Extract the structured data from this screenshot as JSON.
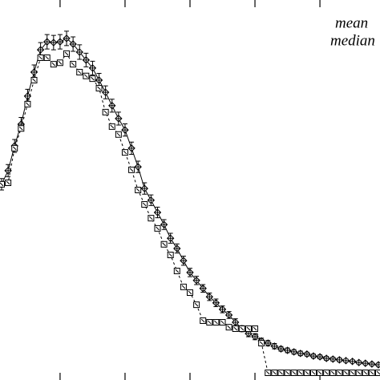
{
  "chart_data": {
    "type": "line",
    "x": [
      1,
      2,
      3,
      4,
      5,
      6,
      7,
      8,
      9,
      10,
      11,
      12,
      13,
      14,
      15,
      16,
      17,
      18,
      19,
      20,
      21,
      22,
      23,
      24,
      25,
      26,
      27,
      28,
      29,
      30,
      31,
      32,
      33,
      34,
      35,
      36,
      37,
      38,
      39,
      40,
      41,
      42,
      43,
      44,
      45,
      46,
      47,
      48,
      49,
      50,
      51,
      52,
      53,
      54,
      55,
      56,
      57,
      58,
      59
    ],
    "series": [
      {
        "name": "mean",
        "color": "#000000",
        "marker": "diamond",
        "dash": false,
        "values": [
          51.5,
          55.1,
          61.6,
          67.3,
          74.7,
          81.0,
          86.9,
          89.0,
          88.8,
          89.0,
          89.9,
          88.4,
          86.3,
          84.2,
          82.1,
          78.9,
          75.7,
          72.2,
          68.8,
          65.8,
          61.0,
          56.1,
          50.4,
          47.3,
          44.1,
          40.9,
          37.3,
          34.6,
          31.4,
          28.3,
          26.2,
          24.1,
          21.9,
          20.3,
          18.6,
          17.1,
          15.2,
          13.5,
          12.2,
          11.4,
          10.3,
          9.7,
          8.9,
          8.2,
          7.8,
          7.4,
          7.0,
          6.8,
          6.3,
          6.1,
          5.7,
          5.5,
          5.3,
          5.1,
          4.9,
          4.6,
          4.4,
          4.2,
          4.0
        ],
        "errors": [
          1.5,
          1.6,
          1.7,
          1.8,
          1.8,
          1.9,
          1.9,
          1.9,
          1.9,
          1.9,
          1.9,
          1.9,
          1.9,
          1.8,
          1.8,
          1.8,
          1.7,
          1.7,
          1.7,
          1.6,
          1.6,
          1.5,
          1.5,
          1.4,
          1.4,
          1.3,
          1.3,
          1.2,
          1.2,
          1.1,
          1.1,
          1.0,
          1.0,
          1.0,
          0.9,
          0.9,
          0.9,
          0.8,
          0.8,
          0.8,
          0.7,
          0.7,
          0.7,
          0.6,
          0.6,
          0.6,
          0.6,
          0.5,
          0.5,
          0.5,
          0.5,
          0.5,
          0.5,
          0.4,
          0.4,
          0.4,
          0.4,
          0.4,
          0.4
        ]
      },
      {
        "name": "median",
        "color": "#000000",
        "marker": "square",
        "dash": true,
        "values": [
          51.5,
          51.9,
          61.0,
          66.2,
          72.6,
          78.9,
          84.8,
          84.8,
          83.1,
          83.5,
          85.9,
          83.1,
          81.0,
          80.0,
          79.3,
          76.8,
          70.5,
          66.7,
          64.6,
          59.9,
          55.3,
          50.0,
          46.2,
          42.6,
          39.9,
          35.7,
          32.9,
          28.7,
          24.5,
          23.0,
          19.8,
          15.6,
          15.2,
          15.2,
          15.2,
          13.9,
          13.5,
          13.5,
          13.5,
          13.5,
          9.7,
          1.9,
          1.9,
          1.9,
          1.9,
          1.9,
          1.9,
          1.9,
          1.9,
          1.9,
          1.9,
          1.9,
          1.9,
          1.9,
          1.9,
          1.9,
          1.9,
          1.9,
          1.9
        ]
      }
    ],
    "xlim": [
      1,
      59
    ],
    "ylim": [
      0,
      100
    ],
    "xticks": [
      10,
      20,
      30,
      40,
      50
    ]
  }
}
